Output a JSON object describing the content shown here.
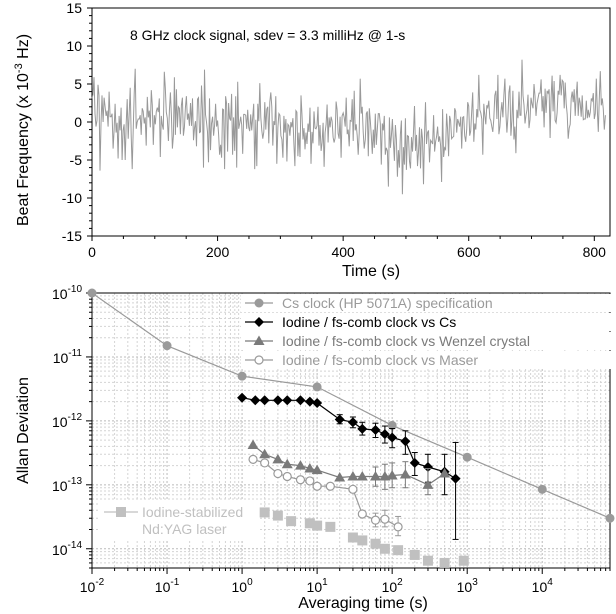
{
  "chart_data": [
    {
      "type": "line",
      "annotation": "8 GHz clock signal, sdev = 3.3 milliHz @ 1-s",
      "xlabel": "Time (s)",
      "ylabel_main": "Beat Frequency (x 10",
      "ylabel_exp": "-3",
      "ylabel_tail": " Hz)",
      "xlim": [
        0,
        825
      ],
      "ylim": [
        -15,
        15
      ],
      "xticks": [
        0,
        200,
        400,
        600,
        800
      ],
      "yticks": [
        15,
        10,
        5,
        0,
        -5,
        -10,
        -15
      ],
      "grid": false,
      "line_color": "#999999",
      "series": [
        {
          "x_start": 0,
          "x_step": 1.6,
          "values": [
            3.1,
            3.6,
            5.9,
            1.1,
            -0.6,
            0.2,
            4.9,
            3.5,
            -6.4,
            -0.3,
            3.5,
            0.0,
            3.2,
            2.0,
            0.8,
            1.5,
            -0.6,
            4.0,
            0.7,
            0.7,
            1.1,
            -3.5,
            -1.1,
            2.4,
            -1.4,
            -0.1,
            -4.8,
            0.8,
            -1.1,
            1.9,
            -5.0,
            -1.1,
            -0.3,
            -5.0,
            -0.2,
            3.0,
            -2.2,
            1.1,
            4.5,
            -1.8,
            -6.2,
            -1.1,
            3.7,
            7.0,
            -0.9,
            0.0,
            0.4,
            0.4,
            0.9,
            -1.7,
            1.8,
            1.4,
            -0.2,
            0.6,
            -3.1,
            3.3,
            0.6,
            1.5,
            -0.7,
            4.2,
            2.2,
            -3.0,
            0.9,
            -0.3,
            1.4,
            1.9,
            1.3,
            3.1,
            -4.6,
            0.8,
            -0.4,
            -1.0,
            6.6,
            4.5,
            1.3,
            0.5,
            -2.5,
            1.5,
            3.9,
            0.9,
            -3.5,
            -1.8,
            5.9,
            -1.7,
            4.3,
            -0.7,
            2.0,
            1.8,
            -1.6,
            2.2,
            3.2,
            -1.8,
            -0.7,
            1.9,
            3.4,
            0.3,
            1.1,
            -0.5,
            2.5,
            -0.5,
            3.1,
            -2.4,
            -0.8,
            0.1,
            -3.2,
            3.0,
            3.2,
            -1.4,
            -1.3,
            4.8,
            1.5,
            -6.0,
            6.9,
            1.0,
            0.0,
            -1.3,
            -5.3,
            3.1,
            -3.7,
            -0.2,
            0.7,
            -1.8,
            -0.4,
            2.4,
            -0.6,
            0.2,
            -1.6,
            -4.3,
            -3.0,
            -4.7,
            1.7,
            1.6,
            -6.2,
            3.4,
            2.4,
            -3.9,
            2.5,
            0.5,
            0.2,
            3.7,
            -4.3,
            0.6,
            -3.8,
            3.4,
            -6.0,
            5.3,
            -0.9,
            -0.2,
            0.7,
            -0.4,
            -4.2,
            1.0,
            1.0,
            0.9,
            -0.9,
            1.6,
            -0.7,
            -1.2,
            1.0,
            -1.1,
            0.6,
            2.4,
            -6.2,
            0.3,
            -5.8,
            2.4,
            0.1,
            5.1,
            0.6,
            -1.1,
            -2.2,
            -1.3,
            2.6,
            -1.0,
            1.7,
            2.0,
            -2.8,
            2.6,
            3.9,
            2.0,
            -3.1,
            0.1,
            -0.4,
            3.4,
            -5.5,
            -0.7,
            1.1,
            0.9,
            -1.8,
            -2.3,
            -4.7,
            0.8,
            -1.4,
            0.4,
            -5.2,
            -0.3,
            -0.5,
            -1.8,
            0.0,
            -0.7,
            0.5,
            -2.9,
            -5.8,
            1.5,
            1.3,
            -4.5,
            -1.4,
            -4.6,
            3.5,
            0.9,
            -2.3,
            -0.8,
            -3.6,
            -1.4,
            -2.9,
            -0.2,
            -1.3,
            1.9,
            -5.5,
            -1.3,
            -2.8,
            1.4,
            -0.8,
            -0.9,
            -0.5,
            2.0,
            -3.1,
            -0.4,
            -3.8,
            -2.7,
            -0.1,
            -5.9,
            -1.4,
            -0.3,
            2.3,
            -2.7,
            0.6,
            -0.7,
            0.7,
            0.1,
            -2.0,
            -2.7,
            -2.1,
            2.7,
            1.6,
            -1.5,
            -2.2,
            0.7,
            -4.7,
            0.8,
            1.2,
            0.6,
            -0.6,
            3.2,
            -1.6,
            -1.0,
            -3.2,
            0.2,
            0.1,
            3.0,
            -2.5,
            4.1,
            -1.1,
            -0.3,
            -1.8,
            -4.3,
            -1.5,
            5.7,
            1.1,
            2.0,
            -1.3,
            -3.5,
            -2.3,
            1.1,
            1.4,
            -4.5,
            1.8,
            0.2,
            -1.8,
            -4.2,
            -1.0,
            -3.4,
            1.1,
            -3.0,
            -1.0,
            1.1,
            1.1,
            -0.2,
            -5.6,
            -0.2,
            -1.1,
            0.8,
            -4.3,
            -3.4,
            -3.8,
            -8.5,
            0.6,
            -3.4,
            -1.8,
            0.4,
            -2.6,
            -5.1,
            -0.4,
            -2.3,
            -7.2,
            -3.7,
            -6.0,
            -1.6,
            0.2,
            -9.5,
            -3.3,
            -5.6,
            0.5,
            -6.3,
            -1.8,
            -1.9,
            -5.2,
            -6.1,
            -2.0,
            -3.9,
            -1.3,
            2.1,
            -3.8,
            -1.7,
            -5.8,
            -3.9,
            -0.7,
            -6.1,
            -0.9,
            -2.2,
            -8.2,
            -1.8,
            2.6,
            -2.9,
            -1.4,
            -1.1,
            -5.3,
            -2.4,
            -2.6,
            -2.9,
            0.9,
            -3.9,
            -2.6,
            -1.9,
            -0.6,
            -2.6,
            -1.9,
            -3.1,
            -7.9,
            1.7,
            -4.6,
            -3.4,
            -3.6,
            1.1,
            -1.0,
            -4.5,
            0.8,
            0.2,
            -2.2,
            -2.0,
            -1.9,
            1.8,
            1.4,
            -1.4,
            0.4,
            -0.1,
            -0.6,
            0.7,
            -3.5,
            0.6,
            0.7,
            -1.8,
            -2.6,
            -1.0,
            2.6,
            2.1,
            -1.8,
            -1.2,
            1.4,
            3.9,
            -2.6,
            -0.2,
            -1.0,
            1.7,
            0.6,
            6.2,
            1.6,
            1.2,
            0.4,
            -4.3,
            2.4,
            0.9,
            -0.3,
            2.2,
            1.9,
            2.8,
            0.5,
            0.2,
            -0.6,
            -1.3,
            0.4,
            3.5,
            4.1,
            0.4,
            6.2,
            -1.6,
            -0.6,
            1.3,
            2.6,
            0.6,
            3.6,
            5.7,
            1.2,
            -1.4,
            0.6,
            3.9,
            4.8,
            -1.8,
            0.2,
            4.1,
            -2.3,
            -0.6,
            -4.1,
            1.6,
            0.5,
            4.0,
            0.9,
            0.9,
            8.2,
            3.5,
            2.2,
            -0.2,
            0.9,
            1.6,
            3.6,
            -0.8,
            0.3,
            3.2,
            2.4,
            1.8,
            5.0,
            3.4,
            0.8,
            2.4,
            3.1,
            3.8,
            3.8,
            5.6,
            1.4,
            3.4,
            -0.7,
            4.4,
            1.2,
            4.1,
            3.8,
            4.3,
            -2.1,
            3.2,
            6.1,
            1.4,
            5.4,
            0.2,
            -0.1,
            1.2,
            4.1,
            3.6,
            6.2,
            3.5,
            5.5,
            5.3,
            1.8,
            5.2,
            2.4,
            1.0,
            -2.2,
            -0.8,
            -0.3,
            3.1,
            4.0,
            2.6,
            4.3,
            0.8,
            3.4,
            5.3,
            0.8,
            3.2,
            2.5,
            0.7,
            3.5,
            0.3,
            0.4,
            0.4,
            2.8,
            0.5,
            1.6,
            0.6,
            1.3,
            3.1,
            2.8,
            3.8,
            0.4,
            1.1,
            5.7,
            1.6,
            -1.3,
            3.1,
            6.7,
            2.2,
            3.1,
            1.7,
            -1.0,
            0.9
          ]
        }
      ]
    },
    {
      "type": "scatter",
      "xlabel": "Averaging time (s)",
      "ylabel": "Allan Deviation",
      "xscale": "log",
      "yscale": "log",
      "xlim": [
        0.01,
        80000
      ],
      "ylim": [
        5e-15,
        1e-10
      ],
      "grid": true,
      "xticks": [
        {
          "v": 0.01,
          "base": "10",
          "exp": "-2"
        },
        {
          "v": 0.1,
          "base": "10",
          "exp": "-1"
        },
        {
          "v": 1,
          "base": "10",
          "exp": "0"
        },
        {
          "v": 10,
          "base": "10",
          "exp": "1"
        },
        {
          "v": 100,
          "base": "10",
          "exp": "2"
        },
        {
          "v": 1000,
          "base": "10",
          "exp": "3"
        },
        {
          "v": 10000,
          "base": "10",
          "exp": "4"
        }
      ],
      "yticks": [
        {
          "v": 1e-10,
          "base": "10",
          "exp": "-10"
        },
        {
          "v": 1e-11,
          "base": "10",
          "exp": "-11"
        },
        {
          "v": 1e-12,
          "base": "10",
          "exp": "-12"
        },
        {
          "v": 1e-13,
          "base": "10",
          "exp": "-13"
        },
        {
          "v": 1e-14,
          "base": "10",
          "exp": "-14"
        }
      ],
      "legend_position": "top-right",
      "series": [
        {
          "name": "Cs clock (HP 5071A) specification",
          "color": "#9a9a9a",
          "marker": "circle-filled",
          "line": true,
          "x": [
            0.01,
            0.1,
            1,
            10,
            100,
            1000,
            10000,
            80000
          ],
          "y": [
            1e-10,
            1.5e-11,
            5e-12,
            3.4e-12,
            8.5e-13,
            2.7e-13,
            8.5e-14,
            3e-14
          ]
        },
        {
          "name": "Iodine / fs-comb clock vs Cs",
          "color": "#000000",
          "marker": "diamond-filled",
          "line": true,
          "x": [
            1,
            1.5,
            2,
            3,
            4,
            6,
            8,
            10,
            20,
            30,
            40,
            60,
            80,
            100,
            150,
            200,
            300,
            500,
            700
          ],
          "y": [
            2.3e-12,
            2.1e-12,
            2.1e-12,
            2.1e-12,
            2.1e-12,
            2.1e-12,
            2e-12,
            1.9e-12,
            1.05e-12,
            9.5e-13,
            7.5e-13,
            7.2e-13,
            6.2e-13,
            5.5e-13,
            4.8e-13,
            2.2e-13,
            1.9e-13,
            1.6e-13,
            1.25e-13
          ],
          "err_lo": [
            null,
            null,
            null,
            null,
            null,
            null,
            null,
            null,
            9e-13,
            7.8e-13,
            6e-13,
            5.5e-13,
            4.5e-13,
            3.8e-13,
            3e-13,
            1.4e-13,
            1.1e-13,
            7e-14,
            1.4e-14
          ],
          "err_hi": [
            null,
            null,
            null,
            null,
            null,
            null,
            null,
            null,
            1.25e-12,
            1.15e-12,
            9.5e-13,
            9.2e-13,
            8.3e-13,
            7.6e-13,
            7e-13,
            3.2e-13,
            3e-13,
            3e-13,
            4.6e-13
          ]
        },
        {
          "name": "Iodine / fs-comb clock vs Wenzel crystal",
          "color": "#7a7a7a",
          "marker": "triangle-filled",
          "line": true,
          "x": [
            1.4,
            2,
            3,
            4,
            6,
            8,
            10,
            20,
            30,
            40,
            60,
            80,
            100,
            150,
            300,
            500
          ],
          "y": [
            4.2e-13,
            3e-13,
            2.5e-13,
            2.1e-13,
            2e-13,
            1.8e-13,
            1.7e-13,
            1.3e-13,
            1.35e-13,
            1.35e-13,
            1.35e-13,
            1.35e-13,
            1.4e-13,
            1.45e-13,
            1e-13,
            1.5e-13
          ],
          "err_lo": [
            null,
            null,
            null,
            null,
            null,
            null,
            null,
            null,
            null,
            null,
            9.5e-14,
            8.5e-14,
            9e-14,
            9e-14,
            7e-14,
            null
          ],
          "err_hi": [
            null,
            null,
            null,
            null,
            null,
            null,
            null,
            null,
            null,
            null,
            1.9e-13,
            2.1e-13,
            2.2e-13,
            2.3e-13,
            1.8e-13,
            null
          ]
        },
        {
          "name": "Iodine / fs-comb clock vs Maser",
          "color": "#9a9a9a",
          "marker": "circle-open",
          "line": true,
          "x": [
            1.4,
            2,
            3,
            4,
            6,
            8,
            10,
            15,
            30,
            40,
            60,
            80,
            120
          ],
          "y": [
            2.5e-13,
            2.2e-13,
            1.5e-13,
            1.35e-13,
            1.2e-13,
            1.15e-13,
            9.5e-14,
            9.5e-14,
            8.5e-14,
            3.5e-14,
            2.8e-14,
            2.9e-14,
            2.2e-14
          ],
          "err_lo": [
            null,
            null,
            null,
            null,
            null,
            null,
            null,
            null,
            null,
            null,
            2.2e-14,
            2.2e-14,
            1.6e-14
          ],
          "err_hi": [
            null,
            null,
            null,
            null,
            null,
            null,
            null,
            null,
            null,
            null,
            3.6e-14,
            4e-14,
            3.2e-14
          ]
        },
        {
          "name": "Iodine-stabilized Nd:YAG laser",
          "name_line1": "Iodine-stabilized",
          "name_line2": "Nd:YAG laser",
          "color": "#c0c0c0",
          "marker": "square-filled",
          "line": false,
          "x": [
            1.2,
            2,
            3,
            4.5,
            8,
            10,
            15,
            30,
            40,
            60,
            80,
            120,
            200,
            300,
            500,
            900
          ],
          "y": [
            4.5e-14,
            3.7e-14,
            3.3e-14,
            2.7e-14,
            2.5e-14,
            2.3e-14,
            2.2e-14,
            1.5e-14,
            1.35e-14,
            1.2e-14,
            1e-14,
            9.5e-15,
            8e-15,
            6.5e-15,
            6e-15,
            6.5e-15
          ]
        }
      ]
    }
  ]
}
